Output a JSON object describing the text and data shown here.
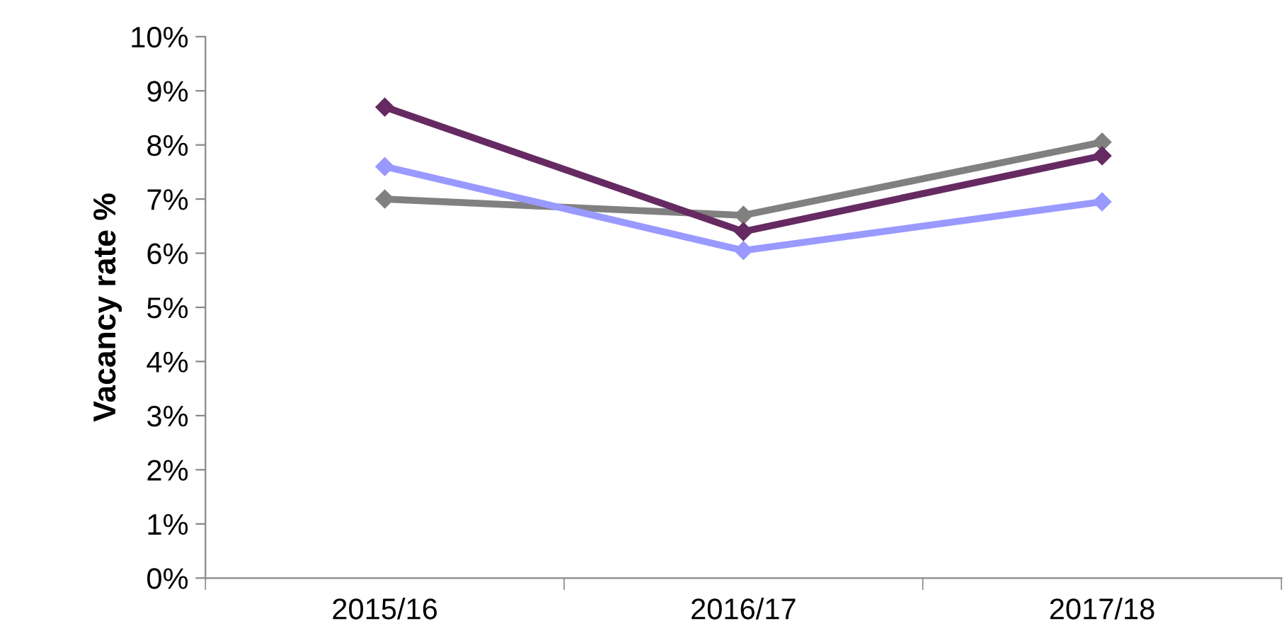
{
  "chart_data": {
    "type": "line",
    "ylabel": "Vacancy rate %",
    "categories": [
      "2015/16",
      "2016/17",
      "2017/18"
    ],
    "series": [
      {
        "color": "#808080",
        "values": [
          7.0,
          6.7,
          8.05
        ]
      },
      {
        "color": "#9999ff",
        "values": [
          7.6,
          6.05,
          6.95
        ]
      },
      {
        "color": "#662a62",
        "values": [
          8.7,
          6.4,
          7.8
        ]
      }
    ],
    "ylim": [
      0,
      10
    ],
    "yticks": [
      {
        "value": 0,
        "label": "0%"
      },
      {
        "value": 1,
        "label": "1%"
      },
      {
        "value": 2,
        "label": "2%"
      },
      {
        "value": 3,
        "label": "3%"
      },
      {
        "value": 4,
        "label": "4%"
      },
      {
        "value": 5,
        "label": "5%"
      },
      {
        "value": 6,
        "label": "6%"
      },
      {
        "value": 7,
        "label": "7%"
      },
      {
        "value": 8,
        "label": "8%"
      },
      {
        "value": 9,
        "label": "9%"
      },
      {
        "value": 10,
        "label": "10%"
      }
    ],
    "marker": "diamond",
    "line_style": "solid",
    "grid": false
  }
}
